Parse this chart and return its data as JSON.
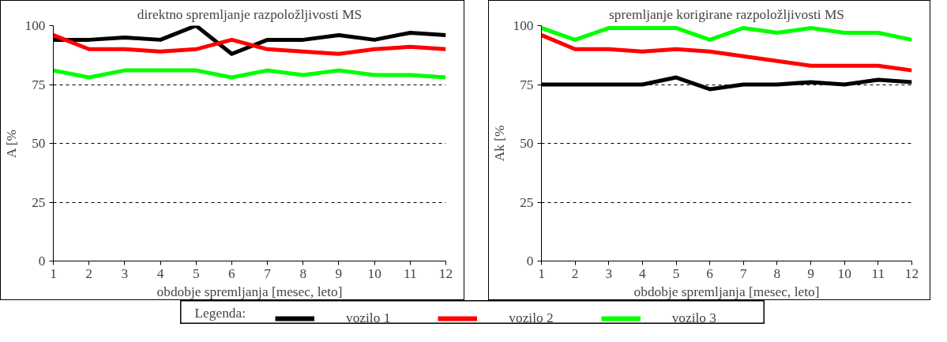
{
  "chart_data": [
    {
      "type": "line",
      "title": "direktno spremljanje razpoložljivosti MS",
      "xlabel": "obdobje spremljanja [mesec, leto]",
      "ylabel": "A [%",
      "x": [
        1,
        2,
        3,
        4,
        5,
        6,
        7,
        8,
        9,
        10,
        11,
        12
      ],
      "xlim": [
        1,
        12
      ],
      "xticks": [
        1,
        2,
        3,
        4,
        5,
        6,
        7,
        8,
        9,
        10,
        11,
        12
      ],
      "ylim": [
        0,
        100
      ],
      "yticks": [
        0,
        25,
        50,
        75,
        100
      ],
      "grid": "y",
      "legend": "bottom",
      "legend_title": "Legenda:",
      "line_style": "solid",
      "series": [
        {
          "name": "vozilo 1",
          "color": "#000000",
          "values": [
            94,
            94,
            95,
            94,
            100,
            88,
            94,
            94,
            96,
            94,
            97,
            96
          ]
        },
        {
          "name": "vozilo 2",
          "color": "#ff0000",
          "values": [
            96,
            90,
            90,
            89,
            90,
            94,
            90,
            89,
            88,
            90,
            91,
            90
          ]
        },
        {
          "name": "vozilo 3",
          "color": "#00ff00",
          "values": [
            81,
            78,
            81,
            81,
            81,
            78,
            81,
            79,
            81,
            79,
            79,
            78
          ]
        }
      ]
    },
    {
      "type": "line",
      "title": "spremljanje korigirane razpoložljivosti MS",
      "xlabel": "obdobje spremljanja [mesec, leto]",
      "ylabel": "Ak [%",
      "x": [
        1,
        2,
        3,
        4,
        5,
        6,
        7,
        8,
        9,
        10,
        11,
        12
      ],
      "xlim": [
        1,
        12
      ],
      "xticks": [
        1,
        2,
        3,
        4,
        5,
        6,
        7,
        8,
        9,
        10,
        11,
        12
      ],
      "ylim": [
        0,
        100
      ],
      "yticks": [
        0,
        25,
        50,
        75,
        100
      ],
      "grid": "y",
      "line_style": "solid",
      "series": [
        {
          "color": "#000000",
          "values": [
            75,
            75,
            75,
            75,
            78,
            73,
            75,
            75,
            76,
            75,
            77,
            76
          ]
        },
        {
          "color": "#ff0000",
          "values": [
            96,
            90,
            90,
            89,
            90,
            89,
            87,
            85,
            83,
            83,
            83,
            81
          ]
        },
        {
          "color": "#00ff00",
          "values": [
            99,
            94,
            99,
            99,
            99,
            94,
            99,
            97,
            99,
            97,
            97,
            94
          ]
        }
      ]
    }
  ]
}
